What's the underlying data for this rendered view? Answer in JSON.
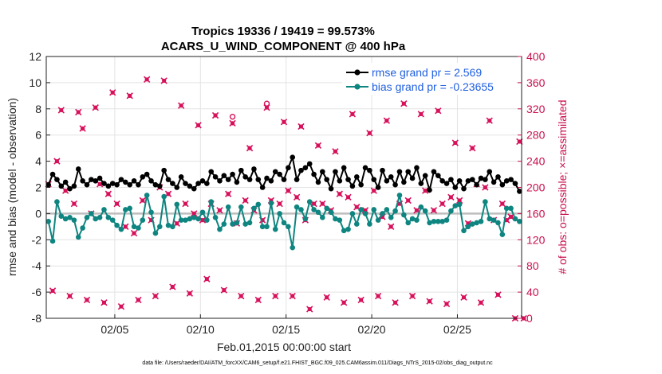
{
  "chart_data": {
    "type": "line",
    "title_line1": "Tropics 19336 / 19419 = 99.573%",
    "title_line2": "ACARS_U_WIND_COMPONENT @ 400 hPa",
    "xlabel": "Feb.01,2015 00:00:00 start",
    "ylabel_left": "rmse and bias (model - observation)",
    "ylabel_right": "# of obs: o=possible; ×=assimilated",
    "footnote": "data file: /Users/raeder/DAI/ATM_forcXX/CAM6_setup/f.e21.FHIST_BGC.f09_025.CAM6assim.011/Diags_NTrS_2015-02/obs_diag_output.nc",
    "xlim": [
      1,
      28.75
    ],
    "ylim_left": [
      -8,
      12
    ],
    "ylim_right": [
      0,
      400
    ],
    "x_ticks": [
      5,
      10,
      15,
      20,
      25
    ],
    "x_tick_labels": [
      "02/05",
      "02/10",
      "02/15",
      "02/20",
      "02/25"
    ],
    "y_ticks_left": [
      -8,
      -6,
      -4,
      -2,
      0,
      2,
      4,
      6,
      8,
      10,
      12
    ],
    "y_tick_labels_left": [
      "-8",
      "-6",
      "-4",
      "-2",
      "0",
      "2",
      "4",
      "6",
      "8",
      "10",
      "12"
    ],
    "y_ticks_right": [
      0,
      40,
      80,
      120,
      160,
      200,
      240,
      280,
      320,
      360,
      400
    ],
    "y_tick_labels_right": [
      "0",
      "40",
      "80",
      "120",
      "160",
      "200",
      "240",
      "280",
      "320",
      "360",
      "400"
    ],
    "zero_line": 0,
    "legend": {
      "position": "top-right",
      "rmse_label": "rmse grand pr = 2.569",
      "bias_label": "bias grand pr = -0.23655"
    },
    "colors": {
      "rmse": "#000000",
      "bias": "#0e8580",
      "obs": "#d6105a",
      "zero": "#bdbdbd",
      "grid": "#e3e3e3",
      "legend_text": "#1f5fe0"
    },
    "series": [
      {
        "name": "rmse",
        "x": [
          1.125,
          1.375,
          1.625,
          1.875,
          2.125,
          2.375,
          2.625,
          2.875,
          3.125,
          3.375,
          3.625,
          3.875,
          4.125,
          4.375,
          4.625,
          4.875,
          5.125,
          5.375,
          5.625,
          5.875,
          6.125,
          6.375,
          6.625,
          6.875,
          7.125,
          7.375,
          7.625,
          7.875,
          8.125,
          8.375,
          8.625,
          8.875,
          9.125,
          9.375,
          9.625,
          9.875,
          10.125,
          10.375,
          10.625,
          10.875,
          11.125,
          11.375,
          11.625,
          11.875,
          12.125,
          12.375,
          12.625,
          12.875,
          13.125,
          13.375,
          13.625,
          13.875,
          14.125,
          14.375,
          14.625,
          14.875,
          15.125,
          15.375,
          15.625,
          15.875,
          16.125,
          16.375,
          16.625,
          16.875,
          17.125,
          17.375,
          17.625,
          17.875,
          18.125,
          18.375,
          18.625,
          18.875,
          19.125,
          19.375,
          19.625,
          19.875,
          20.125,
          20.375,
          20.625,
          20.875,
          21.125,
          21.375,
          21.625,
          21.875,
          22.125,
          22.375,
          22.625,
          22.875,
          23.125,
          23.375,
          23.625,
          23.875,
          24.125,
          24.375,
          24.625,
          24.875,
          25.125,
          25.375,
          25.625,
          25.875,
          26.125,
          26.375,
          26.625,
          26.875,
          27.125,
          27.375,
          27.625,
          27.875,
          28.125,
          28.375,
          28.625
        ],
        "values": [
          2.2,
          3.0,
          2.6,
          2.1,
          2.4,
          1.9,
          2.1,
          3.4,
          2.5,
          2.2,
          2.6,
          2.5,
          2.7,
          2.3,
          2.1,
          2.3,
          2.2,
          2.6,
          2.4,
          2.2,
          2.5,
          2.2,
          2.8,
          3.0,
          2.5,
          2.2,
          2.1,
          3.3,
          2.6,
          2.3,
          2.0,
          2.8,
          2.3,
          2.1,
          1.9,
          2.3,
          2.5,
          2.3,
          3.2,
          2.8,
          2.5,
          2.9,
          2.6,
          3.0,
          2.4,
          3.3,
          2.8,
          2.6,
          3.4,
          2.6,
          2.0,
          2.7,
          2.5,
          3.2,
          3.0,
          2.6,
          3.5,
          4.3,
          2.6,
          3.3,
          3.5,
          3.8,
          3.0,
          2.4,
          3.2,
          2.6,
          1.9,
          3.2,
          2.5,
          3.5,
          2.6,
          2.1,
          2.8,
          2.2,
          3.5,
          3.3,
          2.6,
          2.0,
          3.3,
          2.5,
          2.8,
          2.2,
          3.2,
          2.4,
          3.2,
          2.7,
          3.5,
          2.3,
          2.9,
          1.8,
          3.2,
          2.9,
          2.5,
          2.3,
          2.6,
          2.0,
          2.5,
          1.9,
          2.5,
          2.6,
          2.2,
          2.7,
          2.6,
          3.2,
          2.4,
          2.8,
          2.2,
          2.5,
          2.6,
          2.3,
          1.7
        ]
      },
      {
        "name": "bias",
        "x": [
          1.125,
          1.375,
          1.625,
          1.875,
          2.125,
          2.375,
          2.625,
          2.875,
          3.125,
          3.375,
          3.625,
          3.875,
          4.125,
          4.375,
          4.625,
          4.875,
          5.125,
          5.375,
          5.625,
          5.875,
          6.125,
          6.375,
          6.625,
          6.875,
          7.125,
          7.375,
          7.625,
          7.875,
          8.125,
          8.375,
          8.625,
          8.875,
          9.125,
          9.375,
          9.625,
          9.875,
          10.125,
          10.375,
          10.625,
          10.875,
          11.125,
          11.375,
          11.625,
          11.875,
          12.125,
          12.375,
          12.625,
          12.875,
          13.125,
          13.375,
          13.625,
          13.875,
          14.125,
          14.375,
          14.625,
          14.875,
          15.125,
          15.375,
          15.625,
          15.875,
          16.125,
          16.375,
          16.625,
          16.875,
          17.125,
          17.375,
          17.625,
          17.875,
          18.125,
          18.375,
          18.625,
          18.875,
          19.125,
          19.375,
          19.625,
          19.875,
          20.125,
          20.375,
          20.625,
          20.875,
          21.125,
          21.375,
          21.625,
          21.875,
          22.125,
          22.375,
          22.625,
          22.875,
          23.125,
          23.375,
          23.625,
          23.875,
          24.125,
          24.375,
          24.625,
          24.875,
          25.125,
          25.375,
          25.625,
          25.875,
          26.125,
          26.375,
          26.625,
          26.875,
          27.125,
          27.375,
          27.625,
          27.875,
          28.125,
          28.375,
          28.625
        ],
        "values": [
          -0.6,
          -2.1,
          0.9,
          -0.2,
          -0.4,
          -0.3,
          -0.5,
          -1.8,
          -1.1,
          -0.3,
          0.0,
          -0.4,
          -0.3,
          0.3,
          -0.3,
          -0.5,
          -0.9,
          -1.2,
          0.3,
          0.4,
          -1.0,
          -1.1,
          -0.5,
          1.4,
          0.1,
          -1.5,
          -1.0,
          1.3,
          -0.9,
          -1.0,
          0.7,
          -0.5,
          -0.5,
          -0.4,
          -0.3,
          -0.4,
          0.1,
          -0.5,
          0.9,
          -0.3,
          -1.2,
          -0.8,
          0.5,
          -0.8,
          -0.7,
          0.5,
          -0.8,
          -0.7,
          0.4,
          0.7,
          -1.0,
          -1.0,
          0.8,
          -1.2,
          0.0,
          -0.7,
          -1.0,
          -2.6,
          0.5,
          0.3,
          -0.4,
          0.9,
          0.3,
          0.1,
          -0.3,
          0.4,
          0.1,
          -0.4,
          -0.5,
          -1.3,
          -1.2,
          0.0,
          -0.8,
          0.3,
          0.0,
          -0.8,
          0.3,
          -0.5,
          0.0,
          0.3,
          -0.3,
          0.2,
          1.4,
          -0.1,
          -0.7,
          -0.4,
          -0.5,
          0.5,
          0.2,
          -0.7,
          -0.6,
          -0.6,
          -0.6,
          -0.5,
          0.2,
          0.6,
          0.7,
          -1.3,
          -1.0,
          -0.8,
          -0.7,
          -0.6,
          0.9,
          -0.4,
          -0.5,
          -0.7,
          -1.6,
          0.4,
          0.4,
          -0.4,
          -0.6
        ]
      },
      {
        "name": "obs_assimilated",
        "axis": "right",
        "x": [
          1.125,
          1.625,
          2.125,
          2.625,
          3.125,
          3.625,
          4.125,
          4.625,
          5.125,
          5.625,
          6.125,
          6.625,
          7.125,
          7.625,
          8.125,
          8.625,
          9.125,
          9.625,
          10.125,
          10.625,
          11.125,
          11.625,
          12.125,
          12.625,
          13.125,
          13.625,
          14.125,
          14.625,
          15.125,
          15.625,
          16.125,
          16.625,
          17.125,
          17.625,
          18.125,
          18.625,
          19.125,
          19.625,
          20.125,
          20.625,
          21.125,
          21.625,
          22.125,
          22.625,
          23.125,
          23.625,
          24.125,
          24.625,
          25.125,
          25.625,
          26.125,
          26.625,
          27.125,
          27.625,
          28.125,
          28.625,
          1.375,
          1.875,
          2.375,
          2.875,
          3.375,
          3.875,
          4.375,
          4.875,
          5.375,
          5.875,
          6.375,
          6.875,
          7.375,
          7.875,
          8.375,
          8.875,
          9.375,
          9.875,
          10.375,
          10.875,
          11.375,
          11.875,
          12.375,
          12.875,
          13.375,
          13.875,
          14.375,
          14.875,
          15.375,
          15.875,
          16.375,
          16.875,
          17.375,
          17.875,
          18.375,
          18.875,
          19.375,
          19.875,
          20.375,
          20.875,
          21.375,
          21.875,
          22.375,
          22.875,
          23.375,
          23.875,
          24.375,
          24.875,
          25.375,
          25.875,
          26.375,
          26.875,
          27.375,
          27.875,
          28.375,
          28.875
        ],
        "values": [
          205,
          240,
          195,
          175,
          290,
          160,
          205,
          190,
          175,
          140,
          130,
          180,
          150,
          200,
          190,
          145,
          175,
          160,
          150,
          175,
          165,
          190,
          145,
          180,
          165,
          150,
          180,
          175,
          195,
          185,
          150,
          175,
          175,
          165,
          190,
          185,
          170,
          165,
          195,
          155,
          140,
          175,
          180,
          165,
          195,
          165,
          175,
          185,
          180,
          145,
          205,
          200,
          150,
          175,
          155,
          270,
          42,
          318,
          34,
          315,
          28,
          322,
          24,
          345,
          18,
          340,
          28,
          365,
          34,
          363,
          48,
          325,
          38,
          295,
          60,
          310,
          43,
          298,
          34,
          260,
          28,
          322,
          34,
          300,
          34,
          293,
          14,
          264,
          32,
          255,
          24,
          312,
          28,
          283,
          34,
          302,
          24,
          328,
          34,
          312,
          26,
          317,
          22,
          268,
          32,
          260,
          24,
          302,
          36,
          150,
          0,
          0
        ]
      },
      {
        "name": "obs_possible",
        "axis": "right",
        "x": [
          11.875,
          13.875
        ],
        "values": [
          308,
          328
        ]
      }
    ]
  }
}
